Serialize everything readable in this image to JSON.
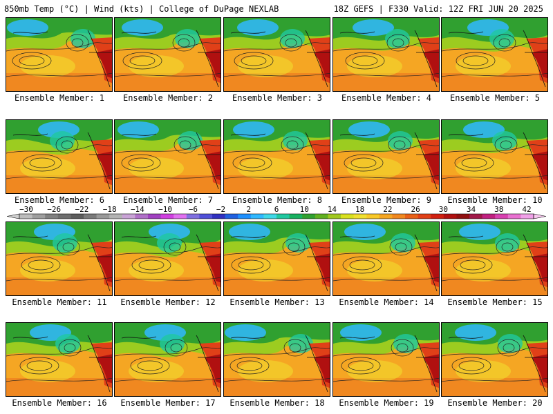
{
  "header": {
    "left": "850mb Temp (°C) | Wind (kts) | College of DuPage NEXLAB",
    "right": "18Z GEFS | F330 Valid: 12Z FRI JUN 20 2025"
  },
  "member_label_prefix": "Ensemble Member: ",
  "members": [
    1,
    2,
    3,
    4,
    5,
    6,
    7,
    8,
    9,
    10,
    11,
    12,
    13,
    14,
    15,
    16,
    17,
    18,
    19,
    20
  ],
  "colorbar": {
    "labels": [
      "−30",
      "−26",
      "−22",
      "−18",
      "−14",
      "−10",
      "−6",
      "−2",
      "2",
      "6",
      "10",
      "14",
      "18",
      "22",
      "26",
      "30",
      "34",
      "38",
      "42"
    ],
    "colors": [
      "#bdbdbd",
      "#9e9e9e",
      "#808080",
      "#6e6e6e",
      "#5c5c5c",
      "#7a7a7a",
      "#999999",
      "#b3b3b3",
      "#c9a3d6",
      "#b070c8",
      "#a040c0",
      "#d040e0",
      "#e070f0",
      "#8070e0",
      "#5050d8",
      "#3030c0",
      "#2060e0",
      "#1e90ff",
      "#30b8ff",
      "#40d8e8",
      "#20c8a0",
      "#18b060",
      "#30a030",
      "#60b020",
      "#a0c820",
      "#d8e020",
      "#f0e030",
      "#f8c828",
      "#f5a623",
      "#f08820",
      "#e86018",
      "#e04018",
      "#d02010",
      "#b01010",
      "#901010",
      "#a01848",
      "#c02080",
      "#d840b0",
      "#e870d0",
      "#f0a0e8"
    ]
  }
}
